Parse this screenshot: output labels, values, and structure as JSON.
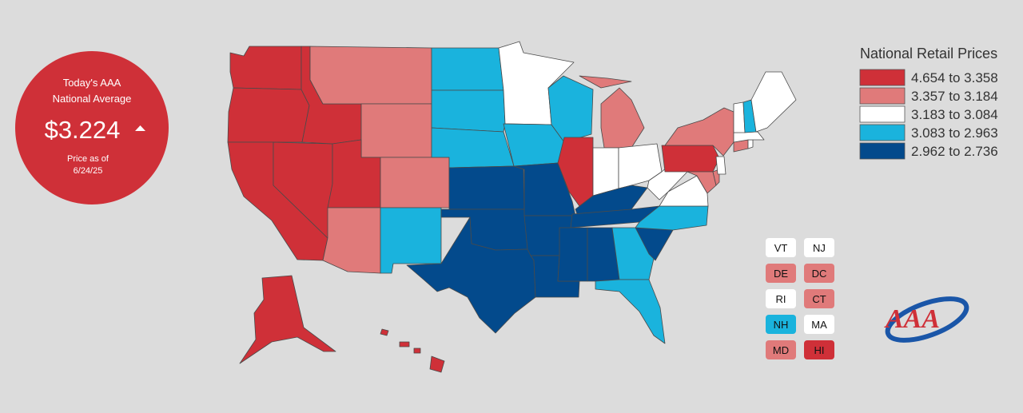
{
  "badge": {
    "line1": "Today's AAA",
    "line2": "National Average",
    "price": "$3.224",
    "trend_icon": "up-triangle-icon",
    "note_line1": "Price as of",
    "note_line2": "6/24/25",
    "color": "#cf3038"
  },
  "legend": {
    "title": "National Retail Prices",
    "items": [
      {
        "label": "4.654 to 3.358",
        "color": "#cf3038"
      },
      {
        "label": "3.357 to 3.184",
        "color": "#e07a7a"
      },
      {
        "label": "3.183 to 3.084",
        "color": "#ffffff"
      },
      {
        "label": "3.083 to 2.963",
        "color": "#1ab3dd"
      },
      {
        "label": "2.962 to 2.736",
        "color": "#034a8c"
      }
    ]
  },
  "small_states": [
    {
      "abbr": "VT",
      "tier": 2
    },
    {
      "abbr": "NJ",
      "tier": 2
    },
    {
      "abbr": "DE",
      "tier": 1
    },
    {
      "abbr": "DC",
      "tier": 1
    },
    {
      "abbr": "RI",
      "tier": 2
    },
    {
      "abbr": "CT",
      "tier": 1
    },
    {
      "abbr": "NH",
      "tier": 3
    },
    {
      "abbr": "MA",
      "tier": 2
    },
    {
      "abbr": "MD",
      "tier": 1
    },
    {
      "abbr": "HI",
      "tier": 0
    }
  ],
  "state_tiers": {
    "WA": 0,
    "OR": 0,
    "CA": 0,
    "NV": 0,
    "ID": 0,
    "UT": 0,
    "AK": 0,
    "HI": 0,
    "IL": 0,
    "PA": 0,
    "MT": 1,
    "WY": 1,
    "CO": 1,
    "AZ": 1,
    "MI": 1,
    "NY": 1,
    "MD": 1,
    "DE": 1,
    "DC": 1,
    "CT": 1,
    "MN": 2,
    "IN": 2,
    "OH": 2,
    "WV": 2,
    "VA": 2,
    "ME": 2,
    "VT": 2,
    "MA": 2,
    "RI": 2,
    "NJ": 2,
    "ND": 3,
    "SD": 3,
    "NE": 3,
    "IA": 3,
    "WI": 3,
    "NM": 3,
    "NC": 3,
    "GA": 3,
    "FL": 3,
    "NH": 3,
    "KS": 4,
    "MO": 4,
    "OK": 4,
    "TX": 4,
    "AR": 4,
    "LA": 4,
    "MS": 4,
    "AL": 4,
    "TN": 4,
    "KY": 4,
    "SC": 4
  },
  "logo": {
    "text": "AAA",
    "icon": "aaa-logo-icon"
  }
}
